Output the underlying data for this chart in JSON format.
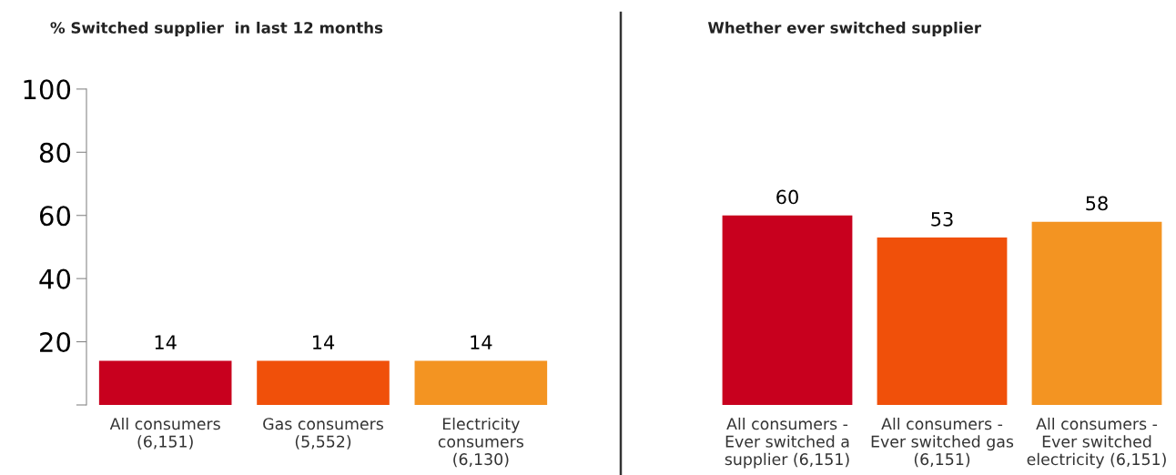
{
  "chart_data": [
    {
      "type": "bar",
      "title": "% Switched supplier  in last 12 months",
      "categories": [
        "All consumers\n(6,151)",
        "Gas consumers\n(5,552)",
        "Electricity\nconsumers\n(6,130)"
      ],
      "values": [
        14,
        14,
        14
      ],
      "colors": [
        "#c8001e",
        "#f0500a",
        "#f39422"
      ],
      "ylim": [
        0,
        100
      ],
      "yticks": [
        {
          "value": 0,
          "label": null
        },
        20,
        40,
        60,
        80,
        100
      ],
      "data_labels": true
    },
    {
      "type": "bar",
      "title": "Whether ever switched supplier",
      "categories": [
        "All consumers -\nEver switched a\nsupplier (6,151)",
        "All consumers -\nEver switched gas\n(6,151)",
        "All consumers -\nEver switched\nelectricity (6,151)"
      ],
      "values": [
        60,
        53,
        58
      ],
      "colors": [
        "#c8001e",
        "#f0500a",
        "#f39422"
      ],
      "ylim": [
        0,
        100
      ],
      "tick_labels": "x",
      "data_labels": true
    }
  ]
}
